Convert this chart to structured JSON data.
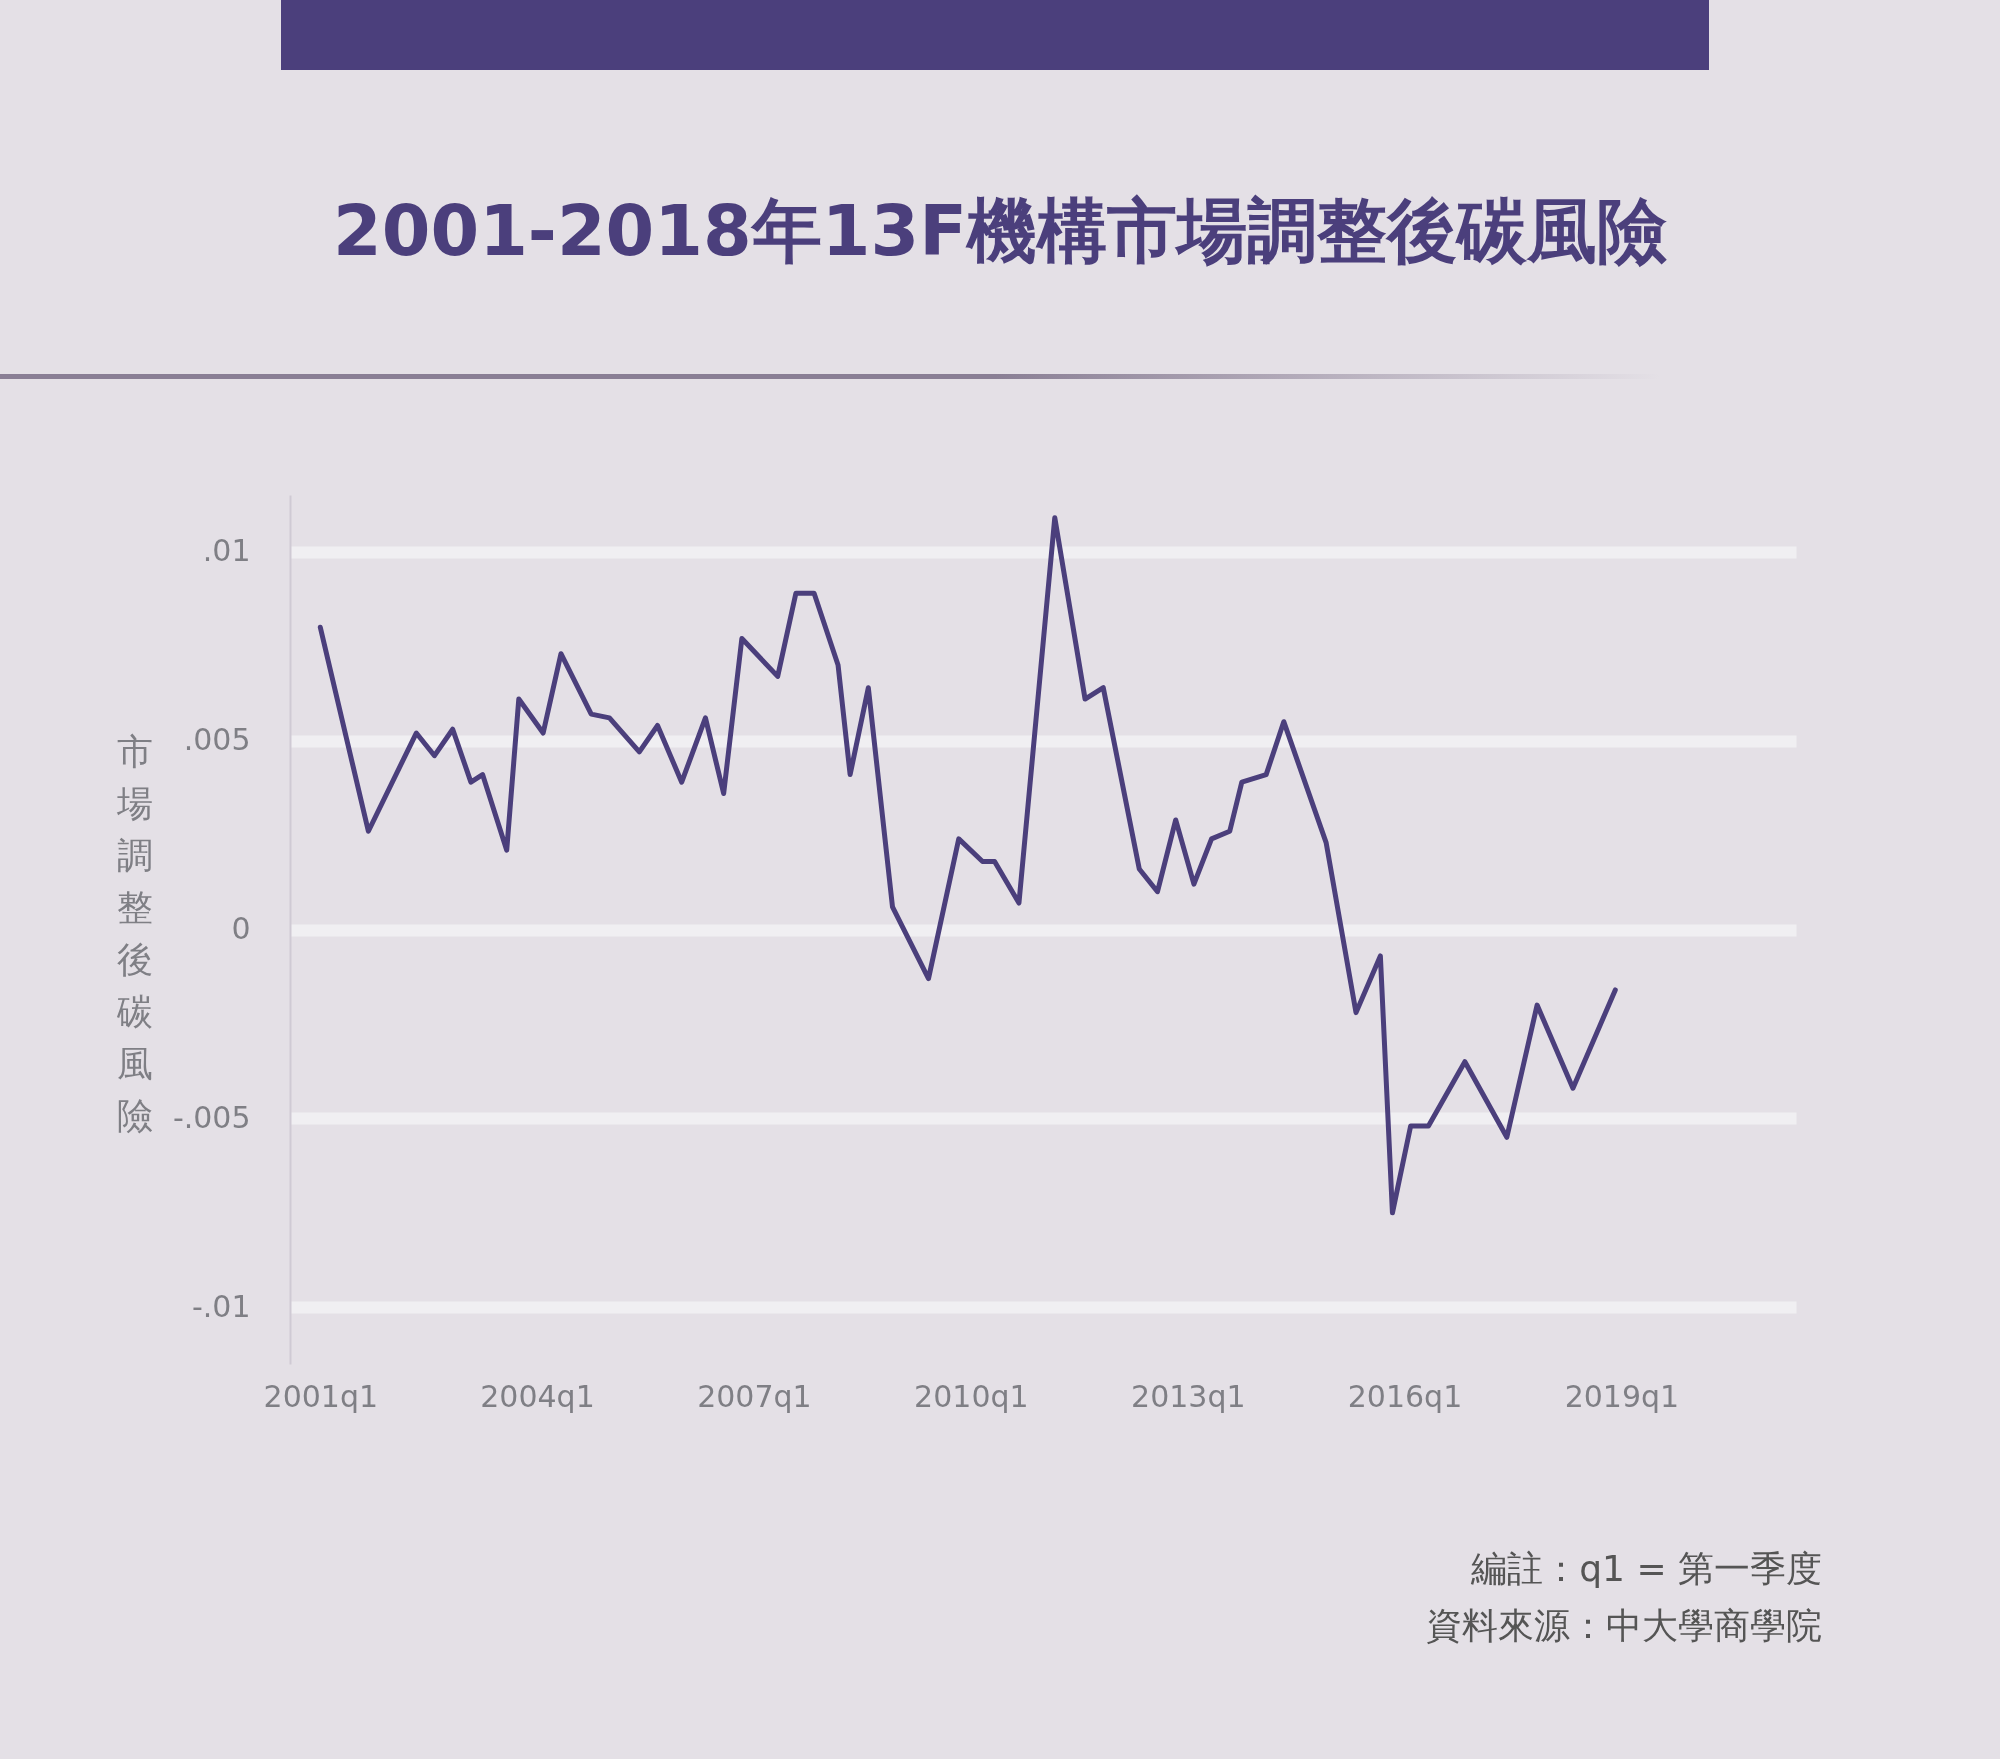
{
  "chart_data": {
    "type": "line",
    "title": "2001-2018年13F機構市場調整後碳風險",
    "ylabel": "市場調整後碳風險",
    "x": [
      "2001-01",
      "2001-09",
      "2002-05",
      "2002-08",
      "2002-11",
      "2003-02",
      "2003-04",
      "2003-08",
      "2003-10",
      "2004-02",
      "2004-05",
      "2004-10",
      "2005-01",
      "2005-06",
      "2005-09",
      "2006-01",
      "2006-05",
      "2006-08",
      "2006-11",
      "2007-05",
      "2007-08",
      "2007-11",
      "2008-03",
      "2008-05",
      "2008-08",
      "2008-12",
      "2009-06",
      "2009-11",
      "2010-03",
      "2010-05",
      "2010-09",
      "2011-03",
      "2011-08",
      "2011-11",
      "2012-05",
      "2012-08",
      "2012-11",
      "2013-02",
      "2013-05",
      "2013-08",
      "2013-10",
      "2014-02",
      "2014-05",
      "2014-12",
      "2015-05",
      "2015-09",
      "2015-11",
      "2016-02",
      "2016-05",
      "2016-11",
      "2017-06",
      "2017-11",
      "2018-05",
      "2018-12"
    ],
    "series": [
      {
        "color": "#4b3f7c",
        "values": [
          0.008,
          0.0026,
          0.0052,
          0.0046,
          0.0053,
          0.0039,
          0.0041,
          0.0021,
          0.0061,
          0.0052,
          0.0073,
          0.0057,
          0.0056,
          0.0047,
          0.0054,
          0.0039,
          0.0056,
          0.0036,
          0.0077,
          0.0067,
          0.0089,
          0.0089,
          0.007,
          0.0041,
          0.0064,
          0.0006,
          -0.0013,
          0.0024,
          0.0018,
          0.0018,
          0.0007,
          0.0109,
          0.0061,
          0.0064,
          0.0016,
          0.001,
          0.0029,
          0.0012,
          0.0024,
          0.0026,
          0.0039,
          0.0041,
          0.0055,
          0.0023,
          -0.0022,
          -0.0007,
          -0.0075,
          -0.0052,
          -0.0052,
          -0.0035,
          -0.0055,
          -0.002,
          -0.0042,
          -0.0016
        ]
      }
    ],
    "xlim": [
      "2000-08",
      "2021-06"
    ],
    "xticks": [
      {
        "value": "2001-01",
        "label": "2001q1"
      },
      {
        "value": "2004-01",
        "label": "2004q1"
      },
      {
        "value": "2007-01",
        "label": "2007q1"
      },
      {
        "value": "2010-01",
        "label": "2010q1"
      },
      {
        "value": "2013-01",
        "label": "2013q1"
      },
      {
        "value": "2016-01",
        "label": "2016q1"
      },
      {
        "value": "2019-01",
        "label": "2019q1"
      }
    ],
    "ylim": [
      -0.0115,
      0.0115
    ],
    "yticks": [
      {
        "value": 0.01,
        "label": ".01"
      },
      {
        "value": 0.005,
        "label": ".005"
      },
      0,
      {
        "value": -0.005,
        "label": "-.005"
      },
      {
        "value": -0.01,
        "label": "-.01"
      }
    ],
    "grid": "y",
    "annotations": [
      "編註：q1 = 第一季度",
      "資料來源：中大學商學院"
    ]
  }
}
